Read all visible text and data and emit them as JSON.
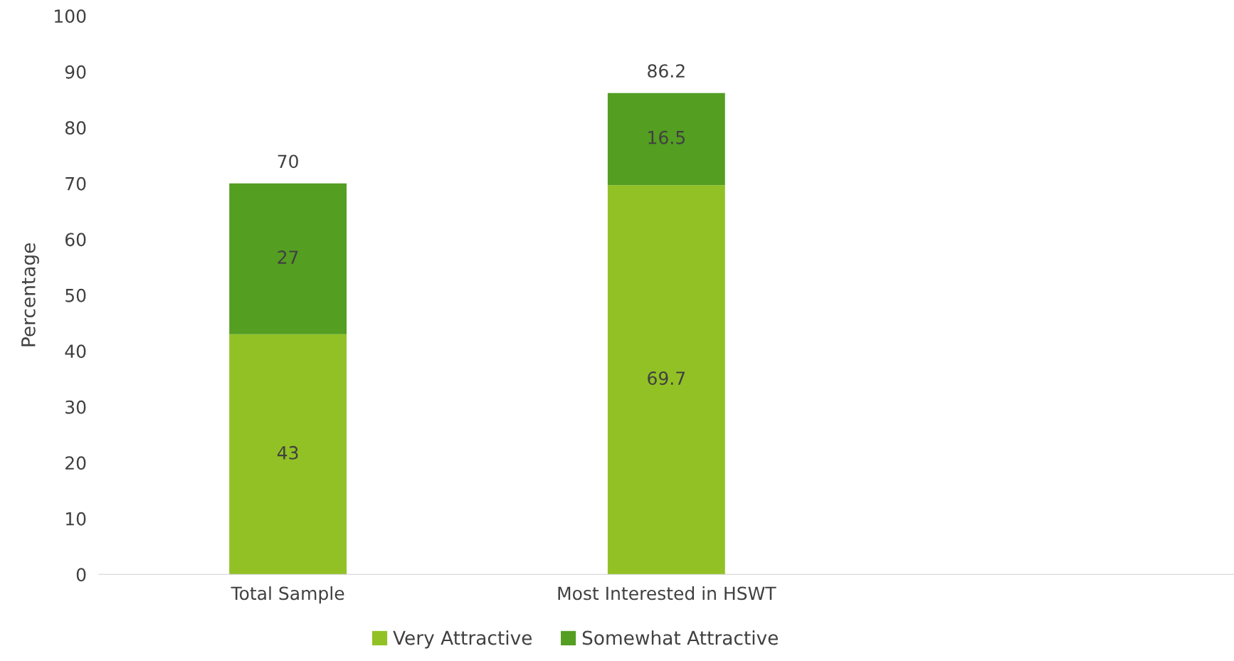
{
  "chart_data": {
    "type": "bar",
    "stacked": true,
    "ylabel": "Percentage",
    "categories": [
      "Total Sample",
      "Most Interested in HSWT",
      null
    ],
    "series": [
      {
        "name": "Very Attractive",
        "color": "#92c125",
        "values": [
          43,
          69.7,
          null
        ]
      },
      {
        "name": "Somewhat Attractive",
        "color": "#549e22",
        "values": [
          27,
          16.5,
          null
        ]
      }
    ],
    "totals": [
      "70",
      "86.2",
      null
    ],
    "data_labels": true,
    "ylim": [
      0,
      100
    ],
    "yticks": [
      0,
      10,
      20,
      30,
      40,
      50,
      60,
      70,
      80,
      90,
      100
    ],
    "grid": false,
    "legend": "bottom"
  }
}
